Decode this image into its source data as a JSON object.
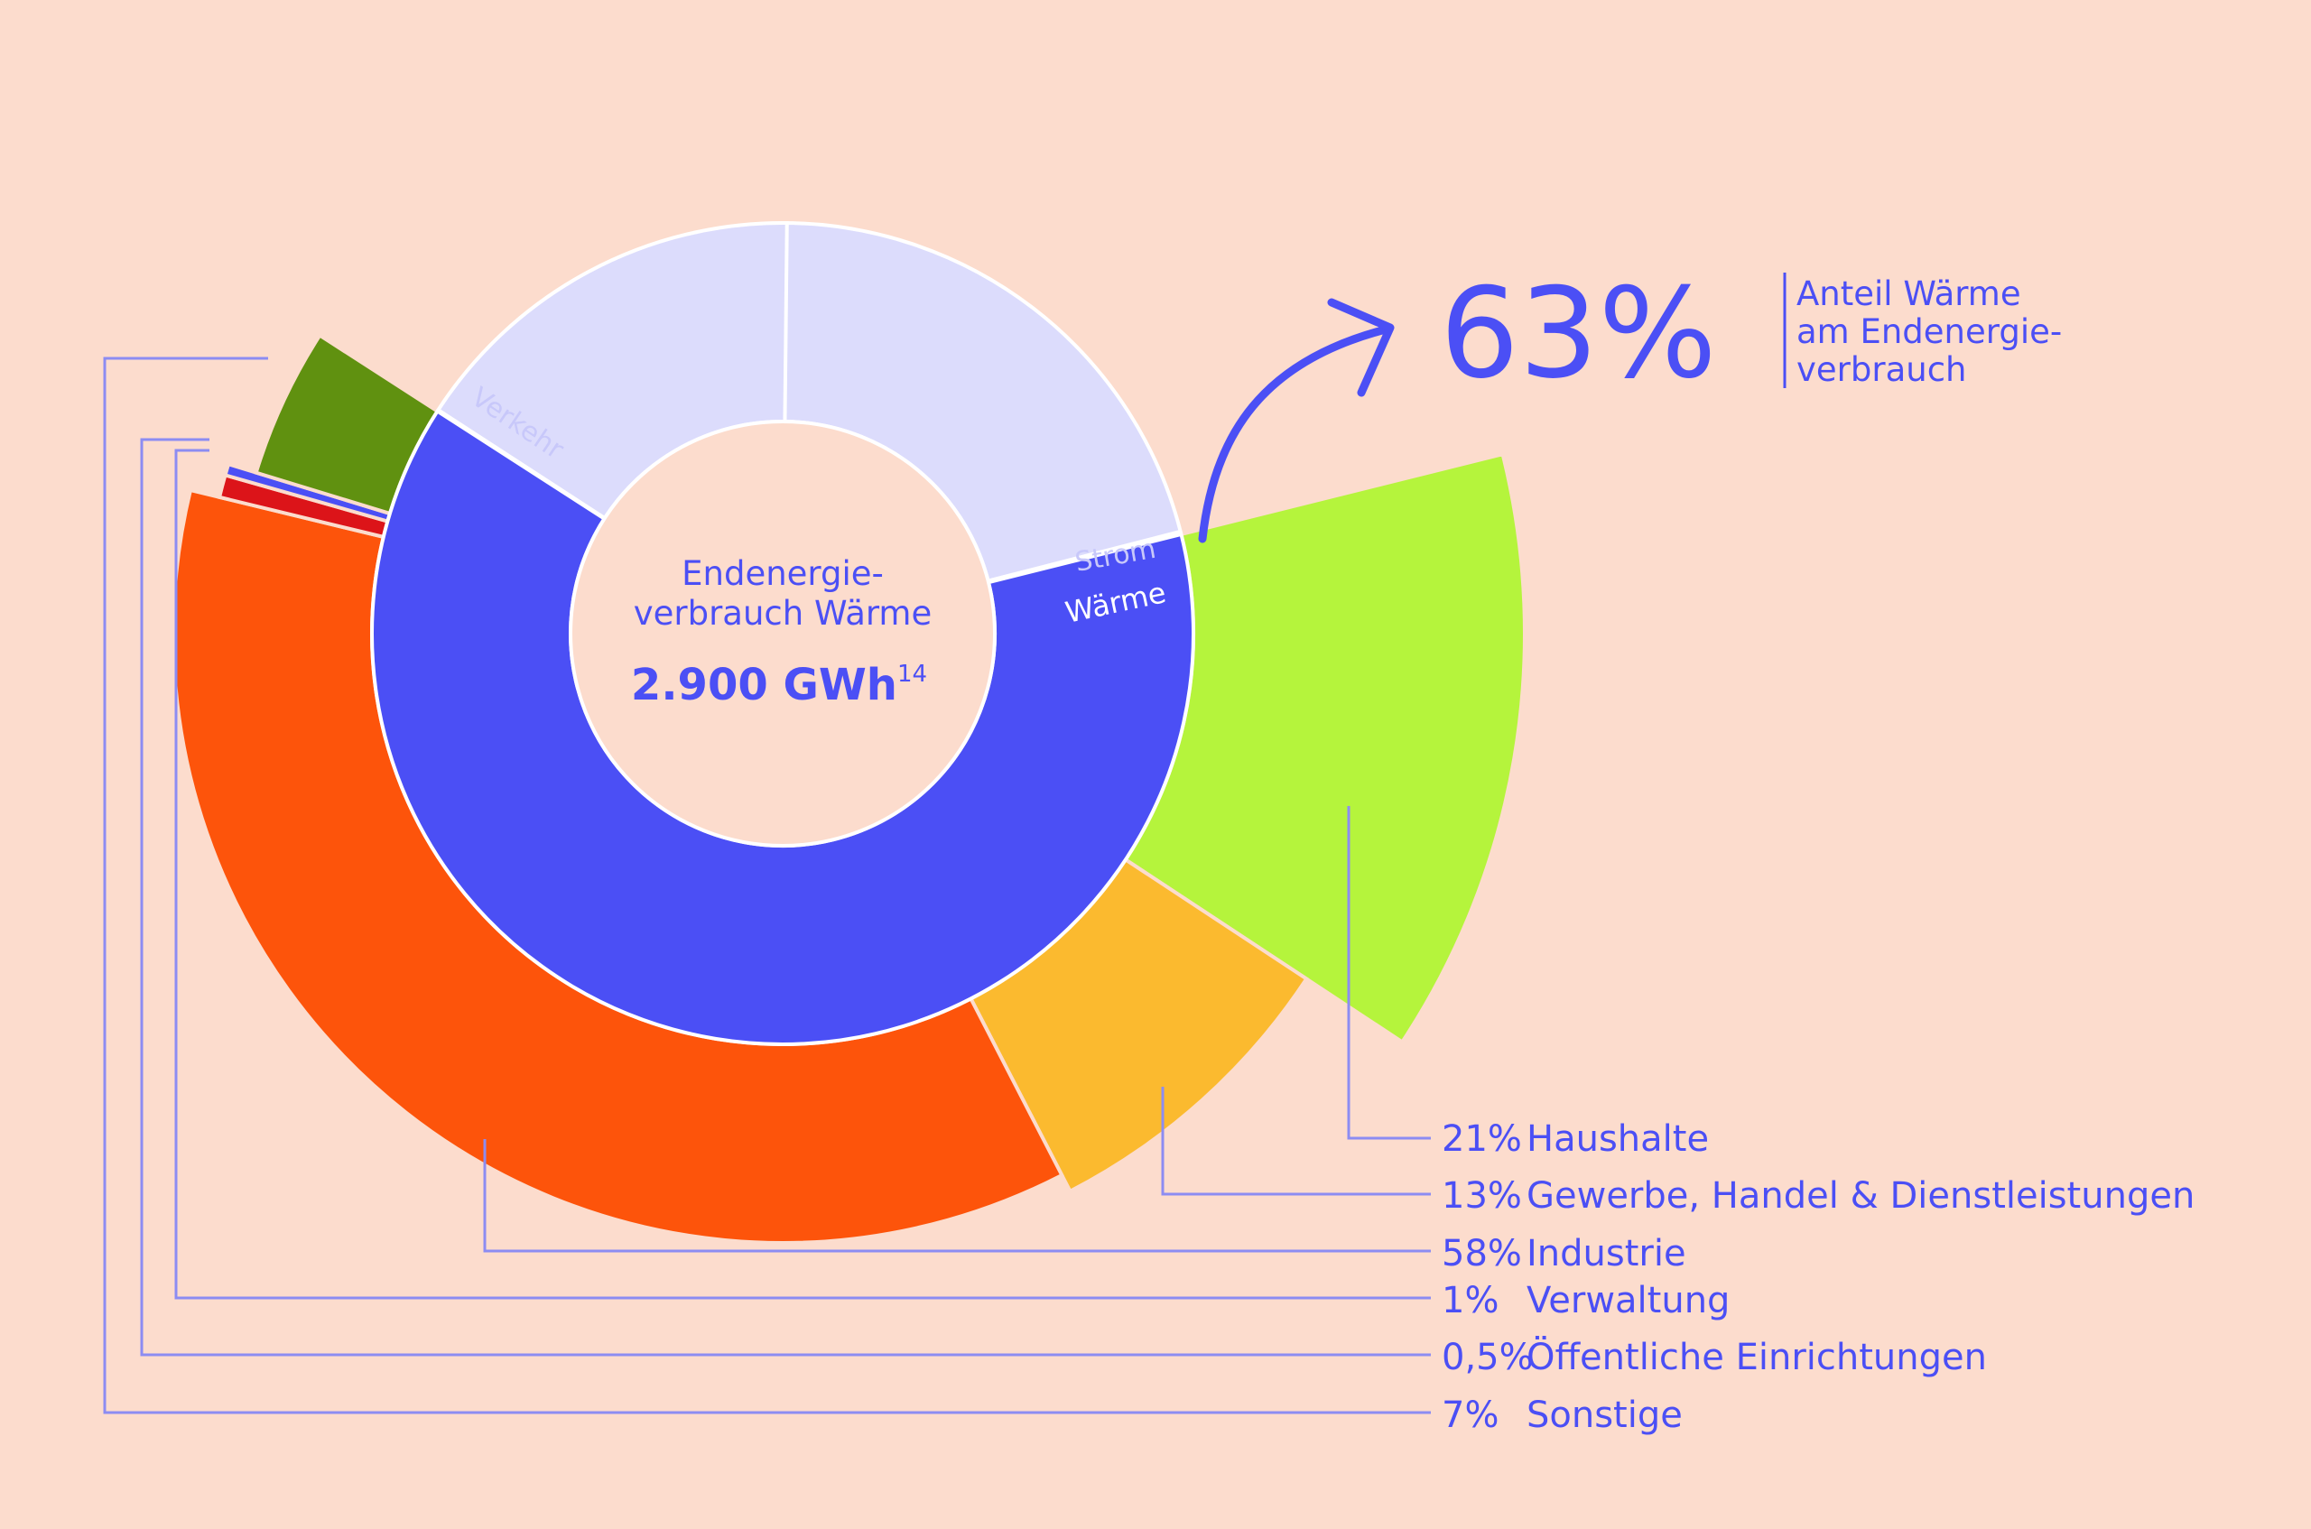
{
  "chart_data": {
    "type": "pie",
    "center": {
      "title_line1": "Endenergie-",
      "title_line2": "verbrauch Wärme",
      "value": "2.900 GWh",
      "footnote": "14"
    },
    "inner_ring": [
      {
        "label": "Strom",
        "start_deg": 0,
        "value": 21,
        "color": "#dcdcfc"
      },
      {
        "label": "Wärme",
        "start_deg": 76,
        "value": 63,
        "color": "#4b4ff5"
      },
      {
        "label": "Verkehr",
        "start_deg": 303,
        "value": 16,
        "color": "#dcdcfc"
      }
    ],
    "outer_ring": [
      {
        "name": "Haushalte",
        "pct_label": "21%",
        "value": 21,
        "color": "#b5f43c"
      },
      {
        "name": "Gewerbe, Handel & Dienstleistungen",
        "pct_label": "13%",
        "value": 13,
        "color": "#fbba2f"
      },
      {
        "name": "Industrie",
        "pct_label": "58%",
        "value": 58,
        "color": "#fd540b"
      },
      {
        "name": "Verwaltung",
        "pct_label": "1%",
        "value": 1,
        "color": "#dc1419"
      },
      {
        "name": "Öffentliche Einrichtungen",
        "pct_label": "0,5%",
        "value": 0.5,
        "color": "#4b4ff5"
      },
      {
        "name": "Sonstige",
        "pct_label": "7%",
        "value": 7,
        "color": "#609110"
      }
    ],
    "callout": {
      "value": "63%",
      "line1": "Anteil Wärme",
      "line2": "am Endenergie-",
      "line3": "verbrauch"
    }
  },
  "colors": {
    "background": "#fcdccd",
    "accent": "#4b4ff5",
    "leader_line": "#8c8cf2"
  }
}
